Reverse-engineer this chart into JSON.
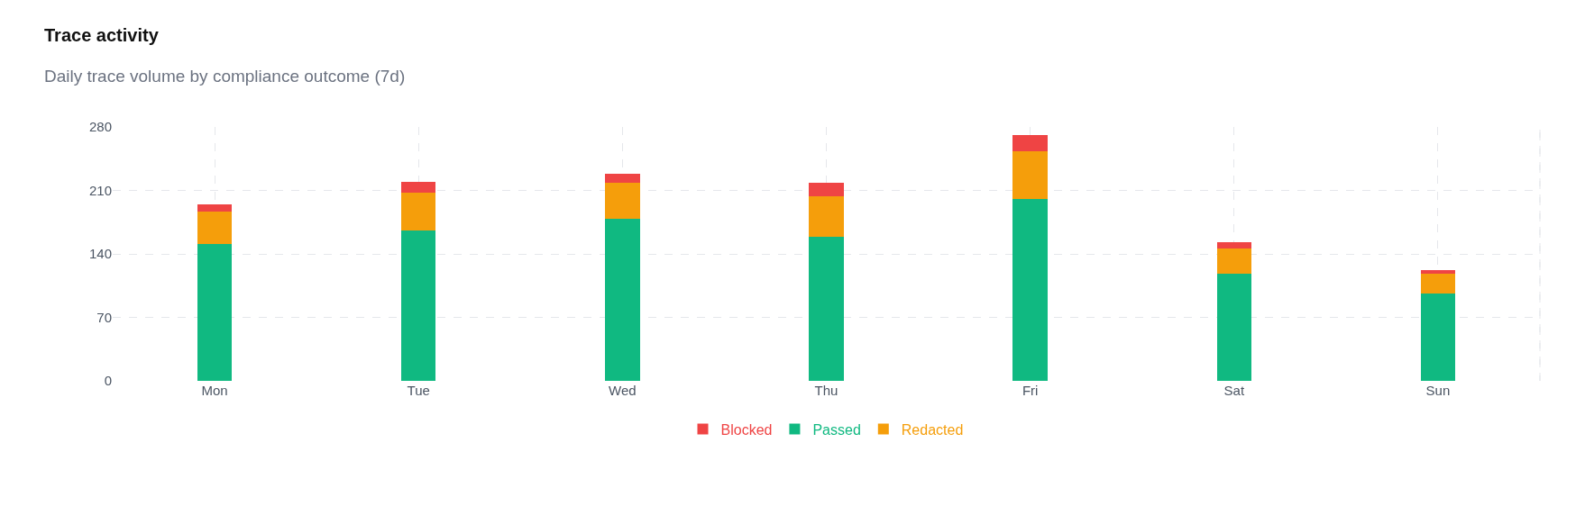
{
  "chart_data": {
    "type": "bar",
    "title": "Trace activity",
    "subtitle": "Daily trace volume by compliance outcome (7d)",
    "categories": [
      "Mon",
      "Tue",
      "Wed",
      "Thu",
      "Fri",
      "Sat",
      "Sun"
    ],
    "stacked": true,
    "series": [
      {
        "name": "Passed",
        "color": "#10b981",
        "values": [
          151,
          166,
          179,
          159,
          201,
          118,
          96
        ]
      },
      {
        "name": "Redacted",
        "color": "#f59e0b",
        "values": [
          36,
          42,
          39,
          45,
          52,
          28,
          22
        ]
      },
      {
        "name": "Blocked",
        "color": "#ef4444",
        "values": [
          8,
          11,
          10,
          14,
          18,
          7,
          4
        ]
      }
    ],
    "ylim": [
      0,
      280
    ],
    "yticks": [
      0,
      70,
      140,
      210,
      280
    ],
    "grid": true,
    "legend": "bottom"
  }
}
